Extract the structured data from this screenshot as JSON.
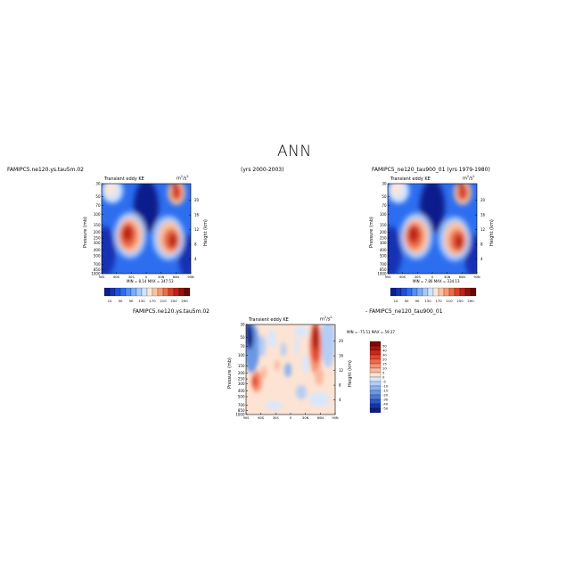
{
  "figure_title": "ANN",
  "panels": {
    "left": {
      "case_label": "FAMIPC5.ne120.ys.tau5m.02",
      "years": "(yrs 2000-2003)",
      "panel_title": "Transient eddy KE",
      "units_base": "m",
      "units_exp1": "2",
      "units_mid": "/s",
      "units_exp2": "2",
      "minmax": "MIN =   8.14   MAX = 347.53",
      "ylabel": "Pressure (mb)",
      "ylabel_right": "Height (km)"
    },
    "right": {
      "case_label": "FAMIPC5_ne120_tau900_01 (yrs 1979-1980)",
      "panel_title": "Transient eddy KE",
      "units_base": "m",
      "units_exp1": "2",
      "units_mid": "/s",
      "units_exp2": "2",
      "minmax": "MIN =   7.86   MAX = 334.13",
      "ylabel": "Pressure (mb)",
      "ylabel_right": "Height (km)"
    },
    "diff": {
      "case_label_a": "FAMIPC5.ne120.ys.tau5m.02",
      "case_label_b": "- FAMIPC5_ne120_tau900_01",
      "panel_title": "Transient eddy KE",
      "units_base": "m",
      "units_exp1": "2",
      "units_mid": "/s",
      "units_exp2": "2",
      "minmax": "MIN = -75.51   MAX =  59.37",
      "ylabel": "Pressure (mb)",
      "ylabel_right": "Height (km)"
    }
  },
  "chart_data": [
    {
      "type": "heatmap",
      "name_ref": "left",
      "x_ticks": [
        "90S",
        "60S",
        "30S",
        "0",
        "30N",
        "60N",
        "90N"
      ],
      "y_ticks": [
        "30",
        "50",
        "70",
        "100",
        "150",
        "200",
        "250",
        "300",
        "400",
        "500",
        "700",
        "850",
        "1000"
      ],
      "y_ticks_right": [
        "20",
        "16",
        "12",
        "8",
        "4"
      ],
      "y_scale": "log-pressure",
      "colorbar_labels": [
        "10",
        "50",
        "90",
        "130",
        "170",
        "210",
        "250",
        "290"
      ],
      "colors": [
        "#0a1f8c",
        "#1432b4",
        "#1e50dc",
        "#2d6ef0",
        "#4f8ff5",
        "#79adf8",
        "#a6c9fb",
        "#d2e4fd",
        "#fde6d6",
        "#fbc3a4",
        "#f59a72",
        "#ec6c45",
        "#d94127",
        "#bd2117",
        "#94110e",
        "#6a0808"
      ],
      "grid": false
    },
    {
      "type": "heatmap",
      "name_ref": "right",
      "x_ticks": [
        "90S",
        "60S",
        "30S",
        "0",
        "30N",
        "60N",
        "90N"
      ],
      "y_ticks": [
        "30",
        "50",
        "70",
        "100",
        "150",
        "200",
        "250",
        "300",
        "400",
        "500",
        "700",
        "850",
        "1000"
      ],
      "y_ticks_right": [
        "20",
        "16",
        "12",
        "8",
        "4"
      ],
      "y_scale": "log-pressure",
      "colorbar_labels": [
        "10",
        "50",
        "90",
        "130",
        "170",
        "210",
        "250",
        "290"
      ],
      "grid": false
    },
    {
      "type": "heatmap",
      "name_ref": "diff",
      "x_ticks": [
        "90S",
        "60S",
        "30S",
        "0",
        "30N",
        "60N",
        "90N"
      ],
      "y_ticks": [
        "30",
        "50",
        "70",
        "100",
        "150",
        "200",
        "250",
        "300",
        "400",
        "500",
        "700",
        "850",
        "1000"
      ],
      "y_ticks_right": [
        "20",
        "16",
        "12",
        "8",
        "4"
      ],
      "y_scale": "log-pressure",
      "colorbar_labels": [
        "50",
        "40",
        "30",
        "20",
        "15",
        "10",
        "5",
        "0",
        "-5",
        "-10",
        "-15",
        "-20",
        "-30",
        "-40",
        "-50"
      ],
      "colors": [
        "#7a0c0c",
        "#a3150f",
        "#c8281a",
        "#e0452c",
        "#ef6b4a",
        "#f69274",
        "#fab89e",
        "#fde3d3",
        "#d9e7fb",
        "#b3cef5",
        "#8cb3ee",
        "#6a97e4",
        "#4d78d6",
        "#2f56c2",
        "#1535a6",
        "#0a1f80"
      ],
      "grid": false
    }
  ]
}
